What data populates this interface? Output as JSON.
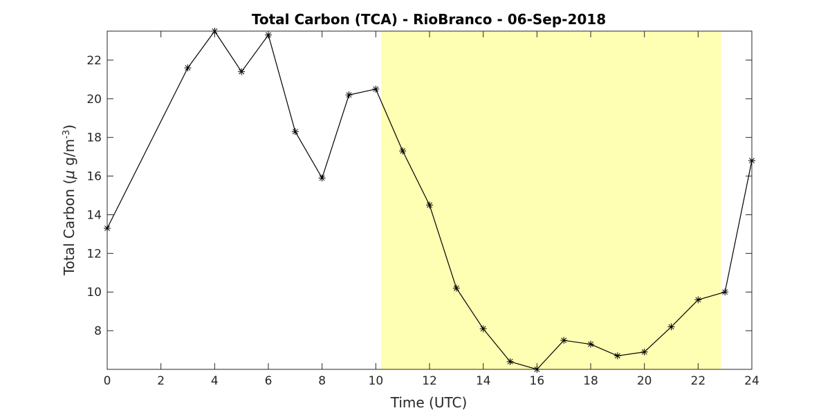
{
  "chart_data": {
    "type": "line",
    "title": "Total Carbon (TCA) - RioBranco - 06-Sep-2018",
    "xlabel": "Time (UTC)",
    "ylabel": {
      "prefix": "Total Carbon (",
      "mu": "μ",
      "unit": " g/m",
      "exponent": "-3",
      "suffix": ")"
    },
    "xlim": [
      0,
      24
    ],
    "ylim": [
      6,
      23.5
    ],
    "xticks": [
      0,
      2,
      4,
      6,
      8,
      10,
      12,
      14,
      16,
      18,
      20,
      22,
      24
    ],
    "yticks": [
      8,
      10,
      12,
      14,
      16,
      18,
      20,
      22
    ],
    "highlight": {
      "x_start": 10.2,
      "x_end": 22.85,
      "color": "#ffffb3"
    },
    "marker": "asterisk",
    "line_color": "#000000",
    "series": [
      {
        "x": [
          0,
          3,
          4,
          5,
          6,
          7,
          8,
          9,
          10,
          11,
          12,
          13,
          14,
          15,
          16,
          17,
          18,
          19,
          20,
          21,
          22,
          23,
          24
        ],
        "y": [
          13.3,
          21.6,
          23.5,
          21.4,
          23.3,
          18.3,
          15.9,
          20.2,
          20.5,
          17.3,
          14.5,
          10.2,
          8.1,
          6.4,
          6.0,
          7.5,
          7.3,
          6.7,
          6.9,
          8.2,
          9.6,
          10.0,
          16.8
        ]
      }
    ]
  }
}
